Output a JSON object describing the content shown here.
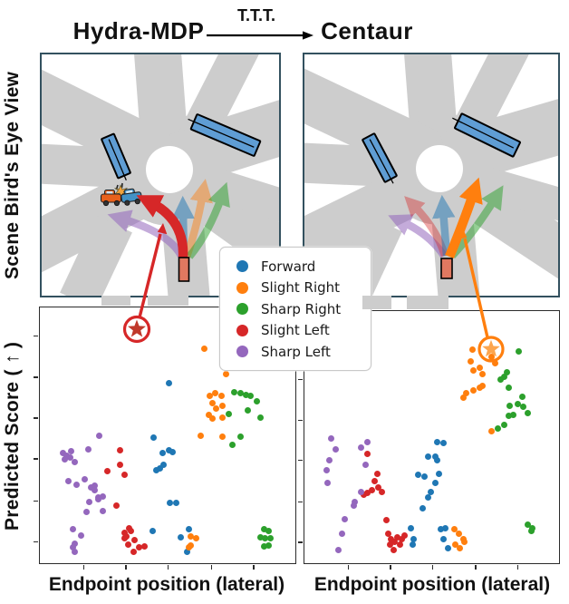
{
  "header": {
    "left_model": "Hydra-MDP",
    "arrow_label": "T.T.T.",
    "right_model": "Centaur"
  },
  "row_labels": {
    "top": "Scene Bird's Eye View",
    "bottom": "Predicted Score ( ↑ )"
  },
  "axis": {
    "x_label_left": "Endpoint position (lateral)",
    "x_label_right": "Endpoint position (lateral)",
    "tick_labels": "none",
    "x_ticks_pct": [
      17,
      33.5,
      50,
      67,
      83.5
    ],
    "y_ticks_pct": [
      8,
      24,
      40.5,
      56.5,
      72.5,
      88.5
    ]
  },
  "legend": {
    "items": [
      {
        "label": "Forward",
        "color": "#1f77b4"
      },
      {
        "label": "Slight Right",
        "color": "#ff7f0e"
      },
      {
        "label": "Sharp Right",
        "color": "#2ca02c"
      },
      {
        "label": "Slight Left",
        "color": "#d62728"
      },
      {
        "label": "Sharp Left",
        "color": "#9467bd"
      }
    ]
  },
  "colors": {
    "road_gray": "#cdcdcd",
    "panel_border": "#33515f",
    "vehicle_blue": "#5f9dd4",
    "ego_salmon": "#e07860",
    "annotation_red": "#d62728",
    "annotation_orange": "#ff7f0e"
  },
  "bev_panels": [
    {
      "title": "Hydra-MDP",
      "highlighted_trajectory": "Slight Left",
      "has_collision_icon": true,
      "trajectories": [
        "Sharp Left",
        "Slight Left",
        "Forward",
        "Slight Right",
        "Sharp Right"
      ],
      "other_vehicles": 2
    },
    {
      "title": "Centaur",
      "highlighted_trajectory": "Slight Right",
      "has_collision_icon": false,
      "trajectories": [
        "Sharp Left",
        "Slight Left",
        "Forward",
        "Slight Right",
        "Sharp Right"
      ],
      "other_vehicles": 2
    }
  ],
  "chart_data": [
    {
      "type": "scatter",
      "title": "Hydra-MDP",
      "xlabel": "Endpoint position (lateral)",
      "ylabel": "Predicted Score ( ↑ )",
      "axis_units": "percent of axes (ticks unlabeled in source)",
      "legend_position": "upper center (shared box between panels)",
      "annotation": {
        "shape": "circled-star",
        "color": "#d62728",
        "series": "Slight Left",
        "point_pct": [
          38.3,
          92.1
        ]
      },
      "series": [
        {
          "name": "Forward",
          "color": "#1f77b4",
          "points": [
            [
              50.5,
              70.5
            ],
            [
              44.5,
              49
            ],
            [
              48,
              43
            ],
            [
              50.5,
              44
            ],
            [
              52,
              43.5
            ],
            [
              45.5,
              36.5
            ],
            [
              47,
              37
            ],
            [
              48.5,
              38.5
            ],
            [
              50.8,
              23.5
            ],
            [
              53.5,
              23.7
            ],
            [
              44,
              12.5
            ],
            [
              55.3,
              10
            ],
            [
              58.2,
              13.2
            ],
            [
              57.8,
              4.5
            ]
          ]
        },
        {
          "name": "Slight Right",
          "color": "#ff7f0e",
          "points": [
            [
              64.5,
              84
            ],
            [
              73,
              74
            ],
            [
              66.5,
              65.5
            ],
            [
              68.5,
              66.5
            ],
            [
              71,
              65.5
            ],
            [
              67.5,
              62.5
            ],
            [
              69,
              60.5
            ],
            [
              71.5,
              61.5
            ],
            [
              66,
              58
            ],
            [
              67.5,
              56.5
            ],
            [
              71.5,
              57
            ],
            [
              63,
              50
            ],
            [
              71.5,
              49.5
            ],
            [
              58.9,
              10.4
            ],
            [
              61,
              9.6
            ],
            [
              59.2,
              6.8
            ],
            [
              58.5,
              6.1
            ]
          ]
        },
        {
          "name": "Sharp Right",
          "color": "#2ca02c",
          "points": [
            [
              76,
              67
            ],
            [
              78.5,
              66.5
            ],
            [
              80.5,
              65.7
            ],
            [
              82.5,
              65.4
            ],
            [
              85,
              63.2
            ],
            [
              81.5,
              59.6
            ],
            [
              74,
              58.2
            ],
            [
              75.5,
              46.4
            ],
            [
              78.5,
              49.6
            ],
            [
              86.5,
              57
            ],
            [
              87.6,
              13.2
            ],
            [
              89.4,
              12.5
            ],
            [
              86.2,
              10
            ],
            [
              88,
              9.6
            ],
            [
              90.1,
              9.6
            ],
            [
              87.6,
              6.4
            ],
            [
              89.4,
              6.8
            ]
          ]
        },
        {
          "name": "Slight Left",
          "color": "#d62728",
          "points": [
            [
              31.5,
              44
            ],
            [
              31.5,
              38.5
            ],
            [
              33,
              34.5
            ],
            [
              26.5,
              36
            ],
            [
              29.8,
              22.5
            ],
            [
              33,
              11.8
            ],
            [
              34.8,
              13.6
            ],
            [
              33.3,
              9.6
            ],
            [
              35.5,
              12.5
            ],
            [
              36.9,
              8.9
            ],
            [
              34.4,
              7.1
            ],
            [
              39,
              6.1
            ],
            [
              40.8,
              6.4
            ],
            [
              36.6,
              4.6
            ],
            [
              34,
              10.5
            ]
          ]
        },
        {
          "name": "Sharp Left",
          "color": "#9467bd",
          "points": [
            [
              23.4,
              50
            ],
            [
              8.9,
              43.2
            ],
            [
              10.3,
              42.1
            ],
            [
              12,
              41.4
            ],
            [
              13.5,
              39.6
            ],
            [
              18.8,
              44.6
            ],
            [
              12.4,
              43.9
            ],
            [
              9.6,
              40.7
            ],
            [
              14.2,
              30.7
            ],
            [
              11.3,
              32.1
            ],
            [
              17.4,
              32.9
            ],
            [
              19.9,
              29.6
            ],
            [
              21.3,
              30.4
            ],
            [
              21.6,
              28.6
            ],
            [
              23,
              25.7
            ],
            [
              24.5,
              26.1
            ],
            [
              19.5,
              23.9
            ],
            [
              22.7,
              25
            ],
            [
              18.1,
              20
            ],
            [
              24.8,
              20.4
            ],
            [
              12.8,
              13.2
            ],
            [
              16,
              10.7
            ],
            [
              13.8,
              7.5
            ],
            [
              12.8,
              6.1
            ],
            [
              13.8,
              4.6
            ]
          ]
        }
      ]
    },
    {
      "type": "scatter",
      "title": "Centaur",
      "xlabel": "Endpoint position (lateral)",
      "ylabel": "Predicted Score ( ↑ )",
      "axis_units": "percent of axes (ticks unlabeled in source)",
      "legend_position": "upper center (shared box between panels)",
      "annotation": {
        "shape": "circled-star",
        "color": "#ff7f0e",
        "series": "Slight Right",
        "point_pct": [
          73.4,
          84.8
        ]
      },
      "series": [
        {
          "name": "Forward",
          "color": "#1f77b4",
          "points": [
            [
              52,
              48
            ],
            [
              54.5,
              47.7
            ],
            [
              48.4,
              42.2
            ],
            [
              51.6,
              42.2
            ],
            [
              52,
              40.8
            ],
            [
              47.3,
              34.3
            ],
            [
              51.6,
              31.8
            ],
            [
              52.7,
              35.4
            ],
            [
              49.8,
              28.2
            ],
            [
              48.4,
              26
            ],
            [
              46.6,
              21.7
            ],
            [
              44.8,
              35
            ],
            [
              41.9,
              13.7
            ],
            [
              43,
              9.7
            ],
            [
              42.7,
              7.2
            ],
            [
              53.4,
              13.4
            ],
            [
              54.5,
              9.7
            ],
            [
              56.3,
              6.1
            ],
            [
              55.2,
              13.7
            ]
          ]
        },
        {
          "name": "Slight Right",
          "color": "#ff7f0e",
          "points": [
            [
              65.9,
              84.8
            ],
            [
              65.2,
              80.1
            ],
            [
              66.3,
              76.5
            ],
            [
              68.8,
              77.6
            ],
            [
              69.9,
              75.1
            ],
            [
              74.9,
              79.4
            ],
            [
              73.5,
              81.9
            ],
            [
              68.8,
              69.7
            ],
            [
              66.3,
              68.6
            ],
            [
              62.4,
              65.7
            ],
            [
              63.4,
              67.5
            ],
            [
              69.9,
              70.4
            ],
            [
              73.5,
              52.3
            ],
            [
              58.8,
              13.4
            ],
            [
              60.6,
              11.6
            ],
            [
              62.4,
              9.7
            ],
            [
              59.1,
              7.2
            ],
            [
              60.9,
              6.1
            ],
            [
              62.7,
              8.3
            ]
          ]
        },
        {
          "name": "Sharp Right",
          "color": "#2ca02c",
          "points": [
            [
              84.2,
              84.1
            ],
            [
              79.6,
              75.8
            ],
            [
              77,
              72.9
            ],
            [
              78.5,
              74
            ],
            [
              80.3,
              69.7
            ],
            [
              85.7,
              66.1
            ],
            [
              80.6,
              62.5
            ],
            [
              83.9,
              63.2
            ],
            [
              86,
              62.1
            ],
            [
              87.8,
              59.6
            ],
            [
              80.3,
              58.5
            ],
            [
              82.1,
              58.8
            ],
            [
              78.5,
              54.9
            ],
            [
              76,
              53.4
            ],
            [
              87.8,
              15.2
            ],
            [
              89.6,
              13.7
            ],
            [
              89.2,
              12.6
            ]
          ]
        },
        {
          "name": "Slight Left",
          "color": "#d62728",
          "points": [
            [
              24.7,
              43.3
            ],
            [
              28.7,
              35.4
            ],
            [
              27.6,
              32.5
            ],
            [
              29,
              30
            ],
            [
              30.5,
              28.2
            ],
            [
              26.5,
              28.9
            ],
            [
              24.7,
              27.8
            ],
            [
              23.3,
              27.1
            ],
            [
              32.3,
              17
            ],
            [
              33,
              11.6
            ],
            [
              34.1,
              9.7
            ],
            [
              33.7,
              7.2
            ],
            [
              35.5,
              8.3
            ],
            [
              36.6,
              10.1
            ],
            [
              38.4,
              9.7
            ],
            [
              39.4,
              10.8
            ],
            [
              37.6,
              7.2
            ],
            [
              35.1,
              5.4
            ]
          ]
        },
        {
          "name": "Sharp Left",
          "color": "#9467bd",
          "points": [
            [
              10.4,
              49.5
            ],
            [
              12.2,
              45.1
            ],
            [
              9.7,
              40.8
            ],
            [
              8.6,
              36.8
            ],
            [
              9,
              31.8
            ],
            [
              15.8,
              17.3
            ],
            [
              14.7,
              11.6
            ],
            [
              13.3,
              5.4
            ],
            [
              19.7,
              24.2
            ],
            [
              19.4,
              22.7
            ],
            [
              22.2,
              45.9
            ],
            [
              24.7,
              48
            ],
            [
              24,
              39
            ],
            [
              22.2,
              28.2
            ]
          ]
        }
      ]
    }
  ]
}
